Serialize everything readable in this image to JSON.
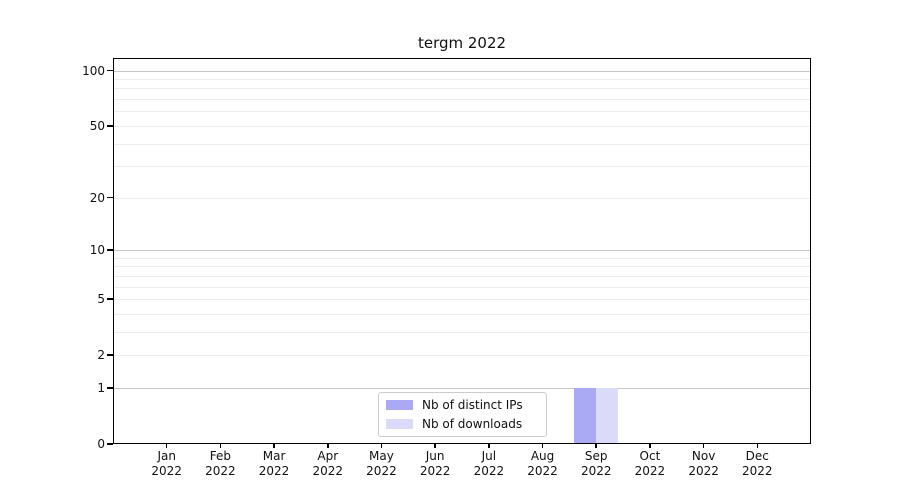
{
  "figure": {
    "background": "#ffffff",
    "text_color": "#111111",
    "spine_color": "#000000",
    "grid_major_color": "#c6c6c6",
    "grid_minor_color": "#ececec"
  },
  "chart_data": {
    "type": "bar",
    "title": "tergm 2022",
    "xlabel": "",
    "ylabel": "",
    "y_scale": "log1p",
    "ylim": [
      0,
      117
    ],
    "grid": "horizontal",
    "legend_position": "lower center",
    "categories": [
      "Jan 2022",
      "Feb 2022",
      "Mar 2022",
      "Apr 2022",
      "May 2022",
      "Jun 2022",
      "Jul 2022",
      "Aug 2022",
      "Sep 2022",
      "Oct 2022",
      "Nov 2022",
      "Dec 2022"
    ],
    "x_tick_labels": [
      [
        "Jan",
        "2022"
      ],
      [
        "Feb",
        "2022"
      ],
      [
        "Mar",
        "2022"
      ],
      [
        "Apr",
        "2022"
      ],
      [
        "May",
        "2022"
      ],
      [
        "Jun",
        "2022"
      ],
      [
        "Jul",
        "2022"
      ],
      [
        "Aug",
        "2022"
      ],
      [
        "Sep",
        "2022"
      ],
      [
        "Oct",
        "2022"
      ],
      [
        "Nov",
        "2022"
      ],
      [
        "Dec",
        "2022"
      ]
    ],
    "y_major_ticks": [
      0,
      1,
      2,
      5,
      10,
      20,
      50,
      100
    ],
    "y_major_gridlines": [
      1,
      10,
      100
    ],
    "y_minor_gridlines": [
      2,
      3,
      4,
      5,
      6,
      7,
      8,
      9,
      20,
      30,
      40,
      50,
      60,
      70,
      80,
      90
    ],
    "series": [
      {
        "name": "Nb of distinct IPs",
        "color": "#a9a9f4",
        "values": [
          0,
          0,
          0,
          0,
          0,
          0,
          0,
          0,
          1,
          0,
          0,
          0
        ]
      },
      {
        "name": "Nb of downloads",
        "color": "#dadaf9",
        "values": [
          0,
          0,
          0,
          0,
          0,
          0,
          0,
          0,
          1,
          0,
          0,
          0
        ]
      }
    ]
  }
}
